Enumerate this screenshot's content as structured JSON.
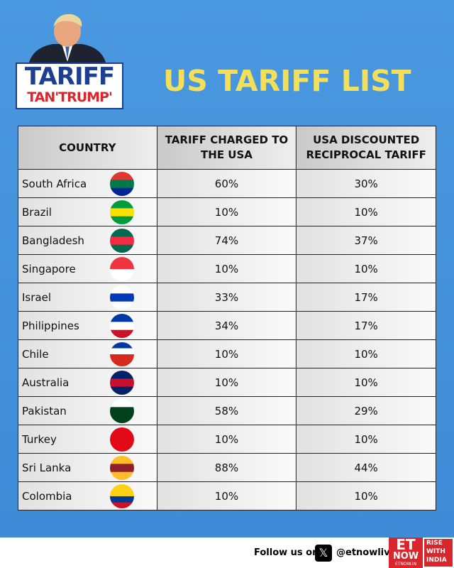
{
  "header": {
    "logo_line1": "TARIFF",
    "logo_line2": "TAN'TRUMP'",
    "title": "US TARIFF LIST"
  },
  "table": {
    "columns": [
      "COUNTRY",
      "TARIFF CHARGED TO THE USA",
      "USA DISCOUNTED RECIPROCAL TARIFF"
    ],
    "rows": [
      [
        "South Africa",
        "60%",
        "30%"
      ],
      [
        "Brazil",
        "10%",
        "10%"
      ],
      [
        "Bangladesh",
        "74%",
        "37%"
      ],
      [
        "Singapore",
        "10%",
        "10%"
      ],
      [
        "Israel",
        "33%",
        "17%"
      ],
      [
        "Philippines",
        "34%",
        "17%"
      ],
      [
        "Chile",
        "10%",
        "10%"
      ],
      [
        "Australia",
        "10%",
        "10%"
      ],
      [
        "Pakistan",
        "58%",
        "29%"
      ],
      [
        "Turkey",
        "10%",
        "10%"
      ],
      [
        "Sri Lanka",
        "88%",
        "44%"
      ],
      [
        "Colombia",
        "10%",
        "10%"
      ]
    ]
  },
  "footer": {
    "follow": "Follow us on",
    "handle": "@etnowlive",
    "brand_top": "ET",
    "brand_bottom": "NOW",
    "tagline": "RISE WITH INDIA",
    "site": "ETNOW.IN"
  }
}
